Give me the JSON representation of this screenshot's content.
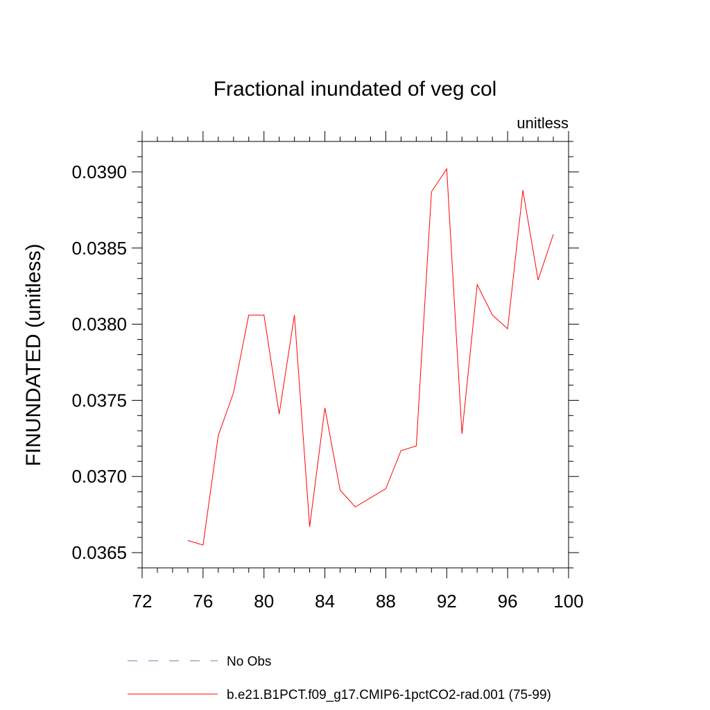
{
  "chart_data": {
    "type": "line",
    "title": "Fractional inundated of veg col",
    "units_label": "unitless",
    "ylabel": "FINUNDATED  (unitless)",
    "xlabel": "",
    "xlim": [
      72,
      100
    ],
    "ylim": [
      0.0364,
      0.0392
    ],
    "x_ticks": [
      72,
      76,
      80,
      84,
      88,
      92,
      96,
      100
    ],
    "y_ticks": [
      0.0365,
      0.037,
      0.0375,
      0.038,
      0.0385,
      0.039
    ],
    "y_tick_labels": [
      "0.0365",
      "0.0370",
      "0.0375",
      "0.0380",
      "0.0385",
      "0.0390"
    ],
    "grid": false,
    "legend_position": "bottom",
    "series": [
      {
        "name": "No Obs",
        "color": "#7b6fb4",
        "dashed": true,
        "x": [],
        "values": []
      },
      {
        "name": "b.e21.B1PCT.f09_g17.CMIP6-1pctCO2-rad.001 (75-99)",
        "color": "#ff0000",
        "dashed": false,
        "x": [
          75,
          76,
          77,
          78,
          79,
          80,
          81,
          82,
          83,
          84,
          85,
          86,
          87,
          88,
          89,
          90,
          91,
          92,
          93,
          94,
          95,
          96,
          97,
          98,
          99
        ],
        "values": [
          0.03658,
          0.03655,
          0.03727,
          0.03755,
          0.03806,
          0.03806,
          0.03741,
          0.03806,
          0.03667,
          0.03745,
          0.03691,
          0.0368,
          0.03686,
          0.03692,
          0.03717,
          0.0372,
          0.03887,
          0.03902,
          0.03728,
          0.03826,
          0.03806,
          0.03797,
          0.03888,
          0.03829,
          0.03859
        ]
      }
    ]
  }
}
